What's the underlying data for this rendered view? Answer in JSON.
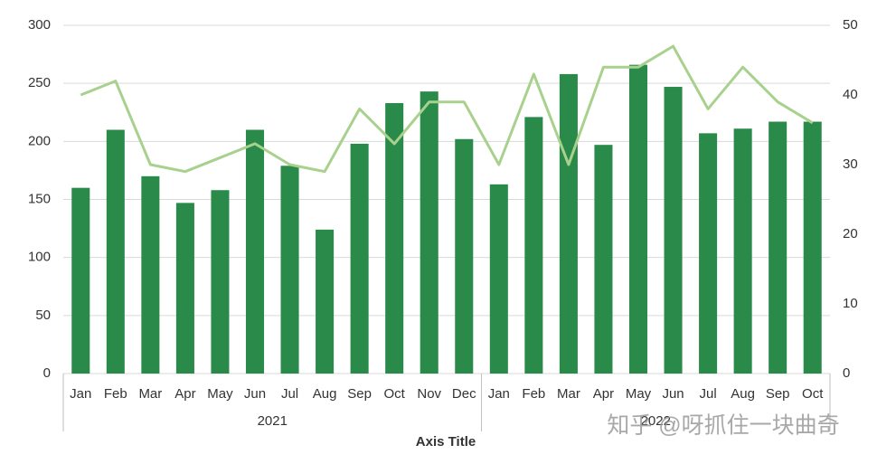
{
  "chart_data": {
    "type": "bar",
    "groups": [
      {
        "name": "2021",
        "categories": [
          "Jan",
          "Feb",
          "Mar",
          "Apr",
          "May",
          "Jun",
          "Jul",
          "Aug",
          "Sep",
          "Oct",
          "Nov",
          "Dec"
        ]
      },
      {
        "name": "2022",
        "categories": [
          "Jan",
          "Feb",
          "Mar",
          "Apr",
          "May",
          "Jun",
          "Jul",
          "Aug",
          "Sep",
          "Oct"
        ]
      }
    ],
    "series": [
      {
        "type": "bar",
        "color": "#2a8a4a",
        "values": [
          160,
          210,
          170,
          147,
          158,
          210,
          179,
          124,
          198,
          233,
          243,
          202,
          163,
          221,
          258,
          197,
          266,
          247,
          207,
          211,
          217,
          217
        ]
      },
      {
        "type": "line",
        "axis": "y2",
        "color": "#a9d18e",
        "values": [
          40,
          42,
          30,
          29,
          31,
          33,
          30,
          29,
          38,
          33,
          39,
          39,
          30,
          43,
          30,
          44,
          44,
          47,
          38,
          44,
          39,
          36
        ]
      }
    ],
    "ylim": [
      0,
      300
    ],
    "yticks": [
      0,
      50,
      100,
      150,
      200,
      250,
      300
    ],
    "y2lim": [
      0,
      50
    ],
    "y2ticks": [
      0,
      10,
      20,
      30,
      40,
      50
    ],
    "grid": true,
    "xlabel": "Axis Title",
    "watermark": "知乎 @呀抓住一块曲奇"
  }
}
